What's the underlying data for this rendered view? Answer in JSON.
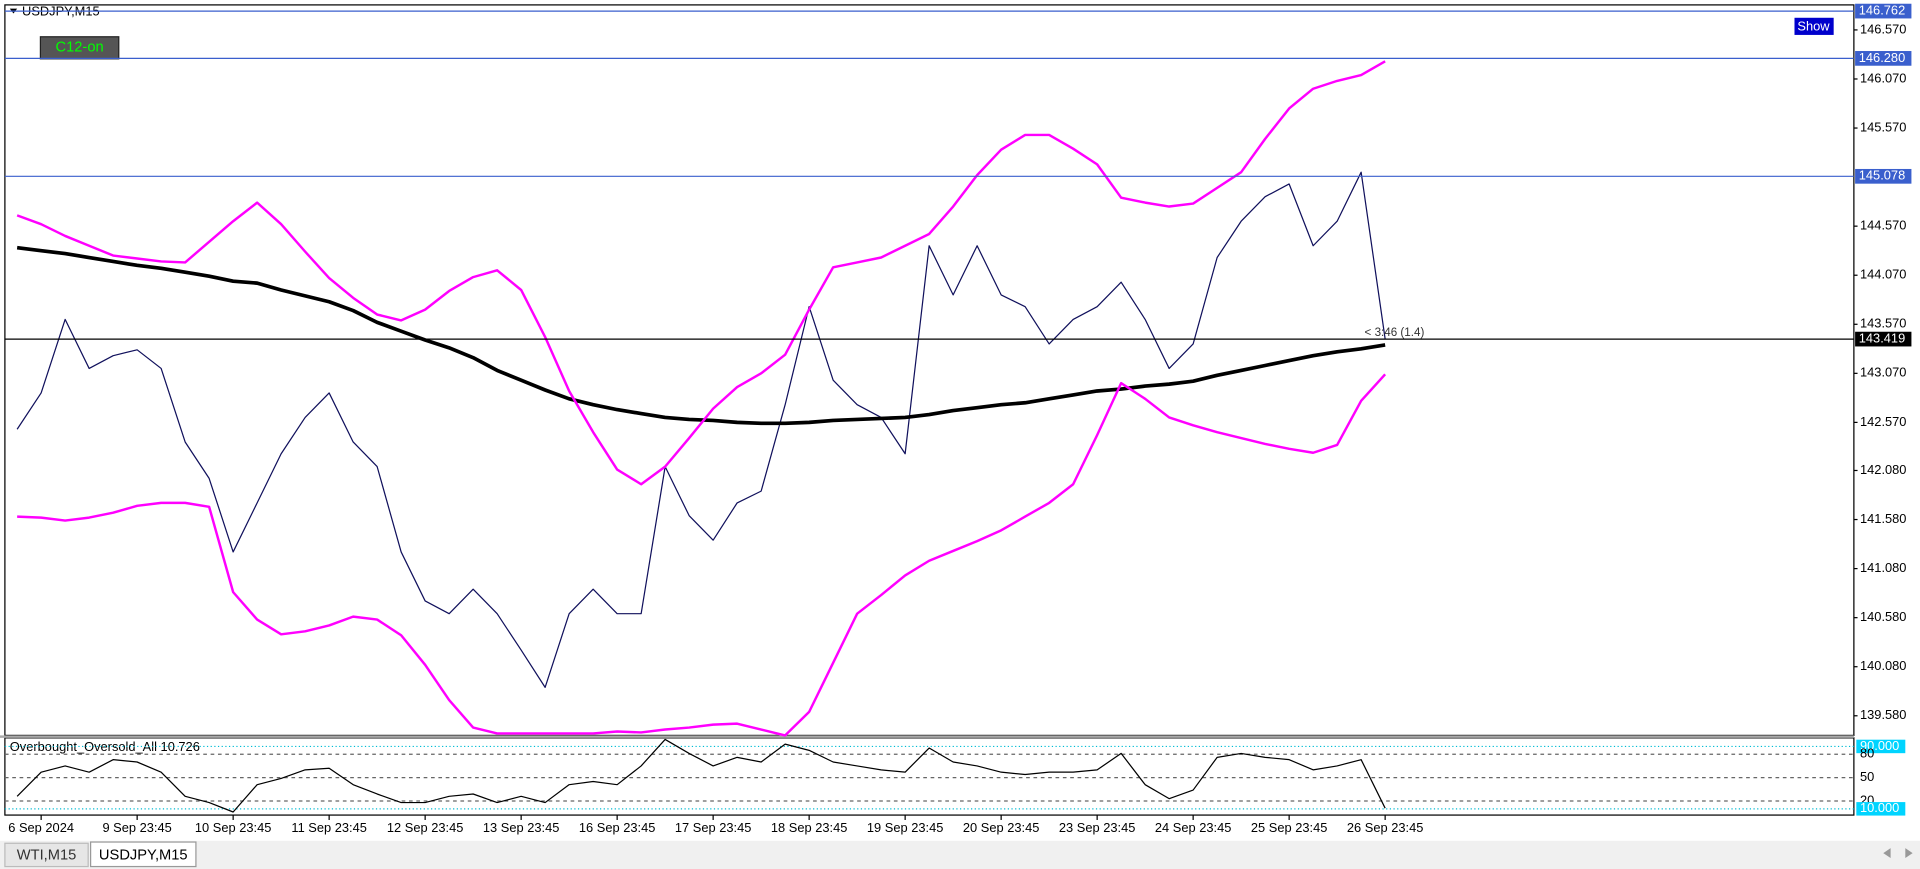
{
  "chart_data": [
    {
      "type": "line",
      "title": "USDJPY,M15",
      "categories": [
        null,
        "6 Sep 2024",
        null,
        null,
        null,
        "9 Sep 23:45",
        null,
        null,
        null,
        "10 Sep 23:45",
        null,
        null,
        null,
        "11 Sep 23:45",
        null,
        null,
        null,
        "12 Sep 23:45",
        null,
        null,
        null,
        "13 Sep 23:45",
        null,
        null,
        null,
        "16 Sep 23:45",
        null,
        null,
        null,
        "17 Sep 23:45",
        null,
        null,
        null,
        "18 Sep 23:45",
        null,
        null,
        null,
        "19 Sep 23:45",
        null,
        null,
        null,
        "20 Sep 23:45",
        null,
        null,
        null,
        "23 Sep 23:45",
        null,
        null,
        null,
        "24 Sep 23:45",
        null,
        null,
        null,
        "25 Sep 23:45",
        null,
        null,
        null,
        "26 Sep 23:45"
      ],
      "series": [
        {
          "color": "#10105c",
          "values": [
            142.5,
            142.87,
            143.62,
            143.12,
            143.25,
            143.31,
            143.12,
            142.37,
            142.0,
            141.25,
            141.75,
            142.25,
            142.62,
            142.87,
            142.37,
            142.12,
            141.25,
            140.75,
            140.62,
            140.87,
            140.62,
            140.25,
            139.87,
            140.62,
            140.87,
            140.62,
            140.62,
            142.12,
            141.62,
            141.37,
            141.75,
            141.87,
            142.75,
            143.75,
            143.0,
            142.75,
            142.62,
            142.25,
            144.37,
            143.87,
            144.37,
            143.87,
            143.75,
            143.37,
            143.62,
            143.75,
            144.0,
            143.62,
            143.12,
            143.37,
            144.25,
            144.62,
            144.87,
            145.0,
            144.37,
            144.62,
            145.12,
            143.42
          ]
        },
        {
          "color": "#000000",
          "values": [
            144.35,
            144.32,
            144.29,
            144.25,
            144.21,
            144.17,
            144.14,
            144.1,
            144.06,
            144.01,
            143.99,
            143.92,
            143.86,
            143.8,
            143.71,
            143.59,
            143.5,
            143.41,
            143.33,
            143.23,
            143.1,
            143.0,
            142.9,
            142.81,
            142.75,
            142.7,
            142.66,
            142.62,
            142.6,
            142.59,
            142.57,
            142.56,
            142.56,
            142.57,
            142.59,
            142.6,
            142.61,
            142.62,
            142.65,
            142.69,
            142.72,
            142.75,
            142.77,
            142.81,
            142.85,
            142.89,
            142.91,
            142.94,
            142.96,
            142.99,
            143.05,
            143.1,
            143.15,
            143.2,
            143.25,
            143.29,
            143.32,
            143.36
          ]
        },
        {
          "color": "#ff00ff",
          "values": [
            144.68,
            144.59,
            144.47,
            144.37,
            144.27,
            144.24,
            144.21,
            144.2,
            144.41,
            144.62,
            144.81,
            144.59,
            144.31,
            144.04,
            143.84,
            143.67,
            143.61,
            143.72,
            143.91,
            144.05,
            144.12,
            143.92,
            143.44,
            142.89,
            142.47,
            142.09,
            141.94,
            142.12,
            142.41,
            142.71,
            142.93,
            143.07,
            143.26,
            143.72,
            144.15,
            144.2,
            144.25,
            144.37,
            144.49,
            144.77,
            145.09,
            145.35,
            145.5,
            145.5,
            145.36,
            145.2,
            144.86,
            144.81,
            144.77,
            144.8,
            144.96,
            145.12,
            145.46,
            145.77,
            145.97,
            146.05,
            146.11,
            146.25
          ]
        },
        {
          "color": "#ff00ff",
          "values": [
            141.61,
            141.6,
            141.57,
            141.6,
            141.65,
            141.72,
            141.75,
            141.75,
            141.71,
            140.84,
            140.56,
            140.41,
            140.44,
            140.5,
            140.59,
            140.56,
            140.4,
            140.1,
            139.74,
            139.46,
            139.4,
            139.4,
            139.4,
            139.4,
            139.4,
            139.42,
            139.41,
            139.44,
            139.46,
            139.49,
            139.5,
            139.44,
            139.38,
            139.62,
            140.12,
            140.62,
            140.81,
            141.01,
            141.16,
            141.26,
            141.36,
            141.47,
            141.61,
            141.75,
            141.94,
            142.44,
            142.97,
            142.81,
            142.62,
            142.54,
            142.47,
            142.41,
            142.35,
            142.3,
            142.26,
            142.34,
            142.79,
            143.06
          ]
        }
      ],
      "ylim": [
        139.38,
        146.825
      ],
      "yticks": [
        {
          "value": 146.57,
          "label": "146.570"
        },
        {
          "value": 146.07,
          "label": "146.070"
        },
        {
          "value": 145.57,
          "label": "145.570"
        },
        {
          "value": 144.57,
          "label": "144.570"
        },
        {
          "value": 144.07,
          "label": "144.070"
        },
        {
          "value": 143.57,
          "label": "143.570"
        },
        {
          "value": 143.07,
          "label": "143.070"
        },
        {
          "value": 142.57,
          "label": "142.570"
        },
        {
          "value": 142.08,
          "label": "142.080"
        },
        {
          "value": 141.58,
          "label": "141.580"
        },
        {
          "value": 141.08,
          "label": "141.080"
        },
        {
          "value": 140.58,
          "label": "140.580"
        },
        {
          "value": 140.08,
          "label": "140.080"
        },
        {
          "value": 139.58,
          "label": "139.580"
        }
      ],
      "levels": [
        {
          "value": 146.762,
          "label": "146.762",
          "color": "#3a5fcd"
        },
        {
          "value": 146.28,
          "label": "146.280",
          "color": "#3a5fcd"
        },
        {
          "value": 145.078,
          "label": "145.078",
          "color": "#3a5fcd"
        },
        {
          "value": 143.419,
          "label": "143.419",
          "color": "#000000"
        }
      ],
      "annotation": "< 3:46 (1.4)"
    },
    {
      "type": "line",
      "title": "Overbought_Oversold_All 10.726",
      "series": [
        {
          "color": "#000000",
          "values": [
            26,
            57,
            65,
            57,
            73,
            70,
            57,
            26,
            18,
            6,
            41,
            49,
            60,
            62,
            41,
            29,
            18,
            18,
            26,
            29,
            18,
            26,
            18,
            41,
            45,
            41,
            65,
            99,
            81,
            65,
            76,
            70,
            93,
            85,
            70,
            65,
            60,
            57,
            88,
            70,
            65,
            57,
            54,
            57,
            57,
            60,
            81,
            41,
            23,
            34,
            76,
            81,
            76,
            73,
            60,
            65,
            73,
            10.73
          ]
        }
      ],
      "ylim": [
        2,
        101
      ],
      "yticks": [
        {
          "value": 90,
          "label": "90.000"
        },
        80,
        50,
        20,
        {
          "value": 10,
          "label": "10.000"
        }
      ]
    }
  ],
  "ui": {
    "indicator_button": "C12-on",
    "show_button": "Show"
  },
  "tabs": [
    "WTI,M15",
    "USDJPY,M15"
  ]
}
